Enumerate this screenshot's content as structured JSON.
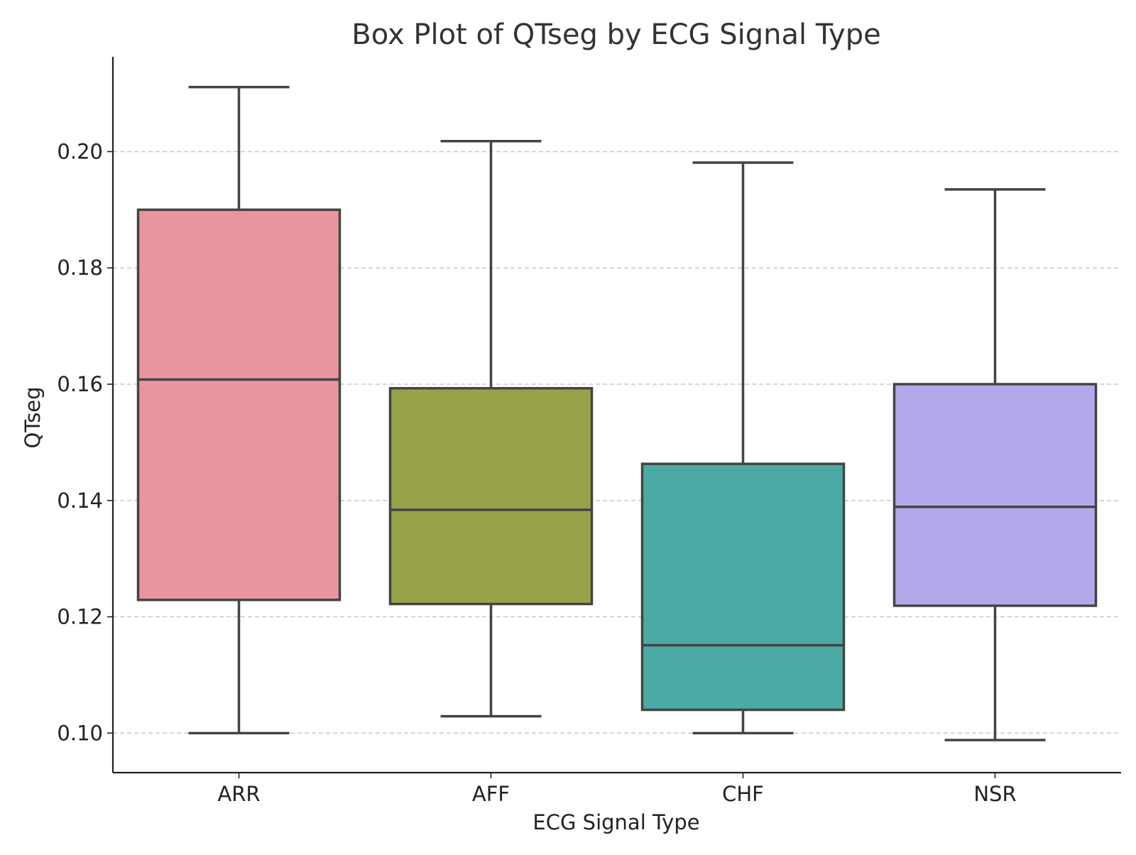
{
  "chart_data": {
    "type": "box",
    "title": "Box Plot of QTseg by ECG Signal Type",
    "xlabel": "ECG Signal Type",
    "ylabel": "QTseg",
    "ylim": [
      0.0932,
      0.2163
    ],
    "yticks": [
      0.1,
      0.12,
      0.14,
      0.16,
      0.18,
      0.2
    ],
    "ytick_labels": [
      "0.10",
      "0.12",
      "0.14",
      "0.16",
      "0.18",
      "0.20"
    ],
    "grid": "horizontal dashed",
    "categories": [
      "ARR",
      "AFF",
      "CHF",
      "NSR"
    ],
    "boxes": [
      {
        "category": "ARR",
        "whisker_low": 0.1,
        "q1": 0.1229,
        "median": 0.1608,
        "q3": 0.19,
        "whisker_high": 0.2111,
        "color": "#e9959f"
      },
      {
        "category": "AFF",
        "whisker_low": 0.1029,
        "q1": 0.1222,
        "median": 0.1384,
        "q3": 0.1593,
        "whisker_high": 0.2018,
        "color": "#98a349"
      },
      {
        "category": "CHF",
        "whisker_low": 0.1,
        "q1": 0.104,
        "median": 0.1151,
        "q3": 0.1463,
        "whisker_high": 0.1981,
        "color": "#4caaa5"
      },
      {
        "category": "NSR",
        "whisker_low": 0.0988,
        "q1": 0.1219,
        "median": 0.1389,
        "q3": 0.16,
        "whisker_high": 0.1935,
        "color": "#b5a8ea"
      }
    ]
  }
}
